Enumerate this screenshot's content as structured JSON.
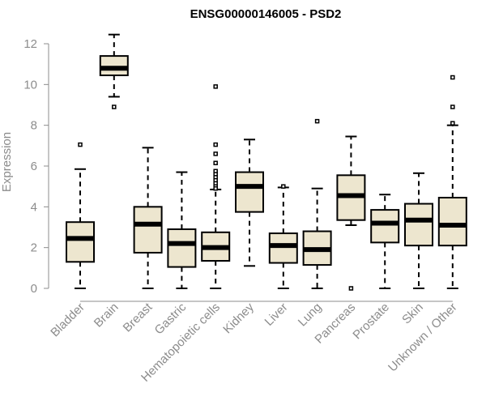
{
  "chart_data": {
    "type": "box",
    "title": "ENSG00000146005 - PSD2",
    "ylabel": "Expression",
    "ylim": [
      0,
      12
    ],
    "yticks": [
      0,
      2,
      4,
      6,
      8,
      10,
      12
    ],
    "categories": [
      "Bladder",
      "Brain",
      "Breast",
      "Gastric",
      "Hematopoietic cells",
      "Kidney",
      "Liver",
      "Lung",
      "Pancreas",
      "Prostate",
      "Skin",
      "Unknown / Other"
    ],
    "boxes": [
      {
        "category": "Bladder",
        "whisker_low": 0.0,
        "q1": 1.3,
        "median": 2.45,
        "q3": 3.25,
        "whisker_high": 5.85,
        "outliers": [
          7.05
        ]
      },
      {
        "category": "Brain",
        "whisker_low": 9.4,
        "q1": 10.45,
        "median": 10.8,
        "q3": 11.4,
        "whisker_high": 12.45,
        "outliers": [
          8.9
        ]
      },
      {
        "category": "Breast",
        "whisker_low": 0.0,
        "q1": 1.75,
        "median": 3.15,
        "q3": 4.0,
        "whisker_high": 6.9,
        "outliers": []
      },
      {
        "category": "Gastric",
        "whisker_low": 0.0,
        "q1": 1.05,
        "median": 2.2,
        "q3": 2.9,
        "whisker_high": 5.7,
        "outliers": []
      },
      {
        "category": "Hematopoietic cells",
        "whisker_low": 0.0,
        "q1": 1.35,
        "median": 2.0,
        "q3": 2.75,
        "whisker_high": 4.85,
        "outliers": [
          9.9,
          7.05,
          6.6,
          6.15,
          5.75,
          5.6,
          5.45,
          5.3,
          5.15,
          5.0,
          4.9
        ]
      },
      {
        "category": "Kidney",
        "whisker_low": 1.1,
        "q1": 3.75,
        "median": 5.0,
        "q3": 5.7,
        "whisker_high": 7.3,
        "outliers": []
      },
      {
        "category": "Liver",
        "whisker_low": 0.0,
        "q1": 1.25,
        "median": 2.1,
        "q3": 2.7,
        "whisker_high": 4.95,
        "outliers": [
          5.0
        ]
      },
      {
        "category": "Lung",
        "whisker_low": 0.0,
        "q1": 1.15,
        "median": 1.9,
        "q3": 2.8,
        "whisker_high": 4.9,
        "outliers": [
          8.2
        ]
      },
      {
        "category": "Pancreas",
        "whisker_low": 3.1,
        "q1": 3.35,
        "median": 4.55,
        "q3": 5.55,
        "whisker_high": 7.45,
        "outliers": [
          0.0
        ]
      },
      {
        "category": "Prostate",
        "whisker_low": 0.0,
        "q1": 2.25,
        "median": 3.2,
        "q3": 3.85,
        "whisker_high": 4.6,
        "outliers": []
      },
      {
        "category": "Skin",
        "whisker_low": 0.0,
        "q1": 2.1,
        "median": 3.35,
        "q3": 4.15,
        "whisker_high": 5.65,
        "outliers": []
      },
      {
        "category": "Unknown / Other",
        "whisker_low": 0.0,
        "q1": 2.1,
        "median": 3.1,
        "q3": 4.45,
        "whisker_high": 8.0,
        "outliers": [
          10.35,
          8.9,
          8.1
        ]
      }
    ],
    "grid": false,
    "legend": "none",
    "colors": {
      "box_fill": "#ede6cf",
      "box_stroke": "#000000",
      "median": "#000000",
      "axis": "#8c8c8c",
      "text": "#8c8c8c",
      "title": "#000000"
    }
  }
}
